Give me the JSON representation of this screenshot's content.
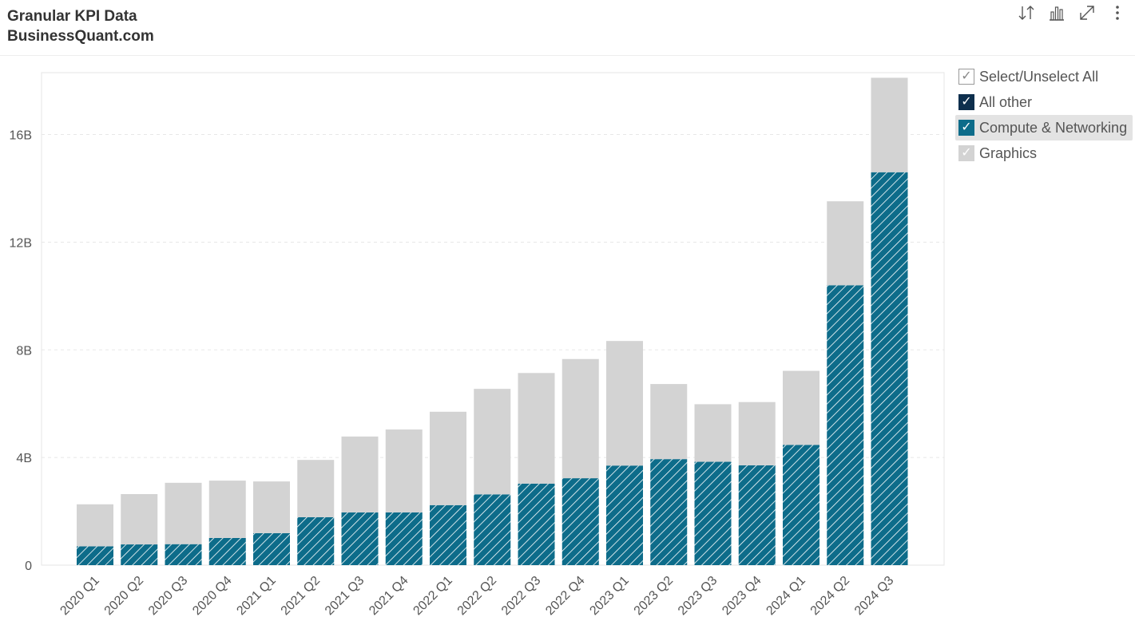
{
  "header": {
    "title": "Granular KPI Data",
    "subtitle": "BusinessQuant.com"
  },
  "toolbar": {
    "icons": [
      "sort-icon",
      "chart-type-icon",
      "expand-icon",
      "more-icon"
    ]
  },
  "legend": {
    "select_all_label": "Select/Unselect All",
    "items": [
      {
        "label": "All other",
        "color": "#0e2f4d",
        "checked": true
      },
      {
        "label": "Compute & Networking",
        "color": "#0d6c8a",
        "checked": true,
        "highlighted": true
      },
      {
        "label": "Graphics",
        "color": "#d3d3d3",
        "checked": true
      }
    ]
  },
  "chart_data": {
    "type": "bar",
    "stacked": true,
    "title": "",
    "xlabel": "",
    "ylabel": "",
    "categories": [
      "2020 Q1",
      "2020 Q2",
      "2020 Q3",
      "2020 Q4",
      "2021 Q1",
      "2021 Q2",
      "2021 Q3",
      "2021 Q4",
      "2022 Q1",
      "2022 Q2",
      "2022 Q3",
      "2022 Q4",
      "2023 Q1",
      "2023 Q2",
      "2023 Q3",
      "2023 Q4",
      "2024 Q1",
      "2024 Q2",
      "2024 Q3"
    ],
    "series": [
      {
        "name": "All other",
        "color": "#0e2f4d",
        "values": [
          0,
          0,
          0,
          0,
          0,
          0,
          0,
          0,
          0,
          0,
          0,
          0,
          0,
          0,
          0,
          0,
          0,
          0,
          0
        ]
      },
      {
        "name": "Compute & Networking",
        "color": "#0d6c8a",
        "pattern": "diagonal-hatch",
        "values": [
          0.7,
          0.77,
          0.78,
          1.01,
          1.19,
          1.78,
          1.96,
          1.96,
          2.23,
          2.63,
          3.03,
          3.23,
          3.7,
          3.94,
          3.84,
          3.71,
          4.47,
          10.4,
          14.6
        ]
      },
      {
        "name": "Graphics",
        "color": "#d3d3d3",
        "values": [
          1.56,
          1.87,
          2.28,
          2.13,
          1.92,
          2.13,
          2.82,
          3.08,
          3.47,
          3.92,
          4.11,
          4.43,
          4.63,
          2.79,
          2.14,
          2.35,
          2.75,
          3.12,
          3.51
        ]
      }
    ],
    "ylim": [
      0,
      18.3
    ],
    "yticks": [
      0,
      4,
      8,
      12,
      16
    ],
    "ytick_labels": [
      "0",
      "4B",
      "8B",
      "12B",
      "16B"
    ],
    "grid": true,
    "legend_position": "right"
  }
}
